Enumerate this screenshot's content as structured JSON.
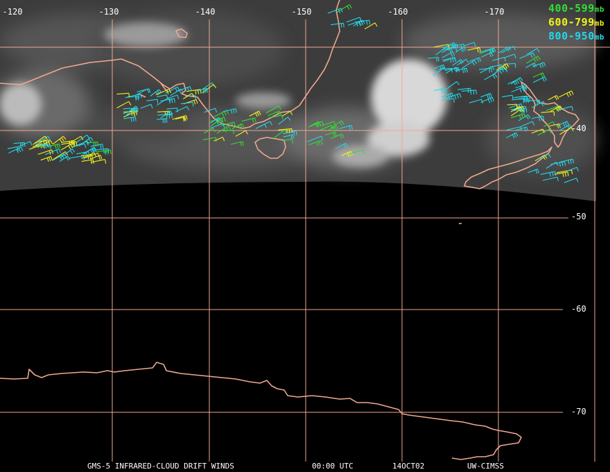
{
  "longitude_labels": [
    {
      "deg": -120,
      "text": "-120"
    },
    {
      "deg": -130,
      "text": "-130"
    },
    {
      "deg": -140,
      "text": "-140"
    },
    {
      "deg": -150,
      "text": "-150"
    },
    {
      "deg": -160,
      "text": "-160"
    },
    {
      "deg": -170,
      "text": "-170"
    }
  ],
  "latitude_labels": [
    {
      "deg": -40,
      "text": "-40"
    },
    {
      "deg": -50,
      "text": "-50"
    },
    {
      "deg": -60,
      "text": "-60"
    },
    {
      "deg": -70,
      "text": "-70"
    }
  ],
  "legend": [
    {
      "range": "400-599",
      "unit": "mb",
      "color": "#33dd33"
    },
    {
      "range": "600-799",
      "unit": "mb",
      "color": "#f2f21a"
    },
    {
      "range": "800-950",
      "unit": "mb",
      "color": "#22d8e8"
    }
  ],
  "footer": {
    "product": "GMS-5 INFRARED-CLOUD DRIFT WINDS",
    "time": "00:00 UTC",
    "date": "14OCT02",
    "source": "UW-CIMSS"
  },
  "colors": {
    "grid": "#f0a890",
    "coastline": "#f0a890",
    "background": "#000000",
    "cloud_bright": "#e8e8e8"
  }
}
